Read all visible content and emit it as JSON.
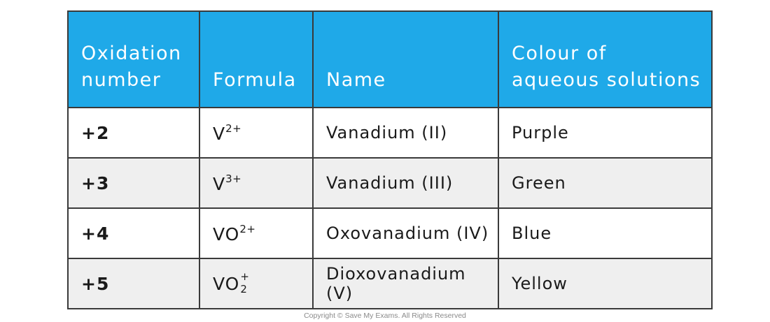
{
  "table": {
    "headers": [
      [
        "Oxidation",
        "number"
      ],
      [
        "Formula"
      ],
      [
        "Name"
      ],
      [
        "Colour of",
        "aqueous solutions"
      ]
    ],
    "rows": [
      {
        "oxidation": "+2",
        "formula_base": "V",
        "formula_charge": "2+",
        "name": "Vanadium (II)",
        "colour": "Purple"
      },
      {
        "oxidation": "+3",
        "formula_base": "V",
        "formula_charge": "3+",
        "name": "Vanadium (III)",
        "colour": "Green"
      },
      {
        "oxidation": "+4",
        "formula_base": "VO",
        "formula_charge": "2+",
        "name": "Oxovanadium (IV)",
        "colour": "Blue"
      },
      {
        "oxidation": "+5",
        "formula_base": "VO",
        "formula_subscript": "2",
        "formula_charge": "+",
        "name": "Dioxovanadium (V)",
        "colour": "Yellow"
      }
    ],
    "colors": {
      "header_bg": "#1fa9e8",
      "header_text": "#ffffff",
      "row_alt_bg": "#efefef",
      "border": "#3a3a3a"
    }
  },
  "footer": {
    "copyright": "Copyright © Save My Exams. All Rights Reserved"
  }
}
